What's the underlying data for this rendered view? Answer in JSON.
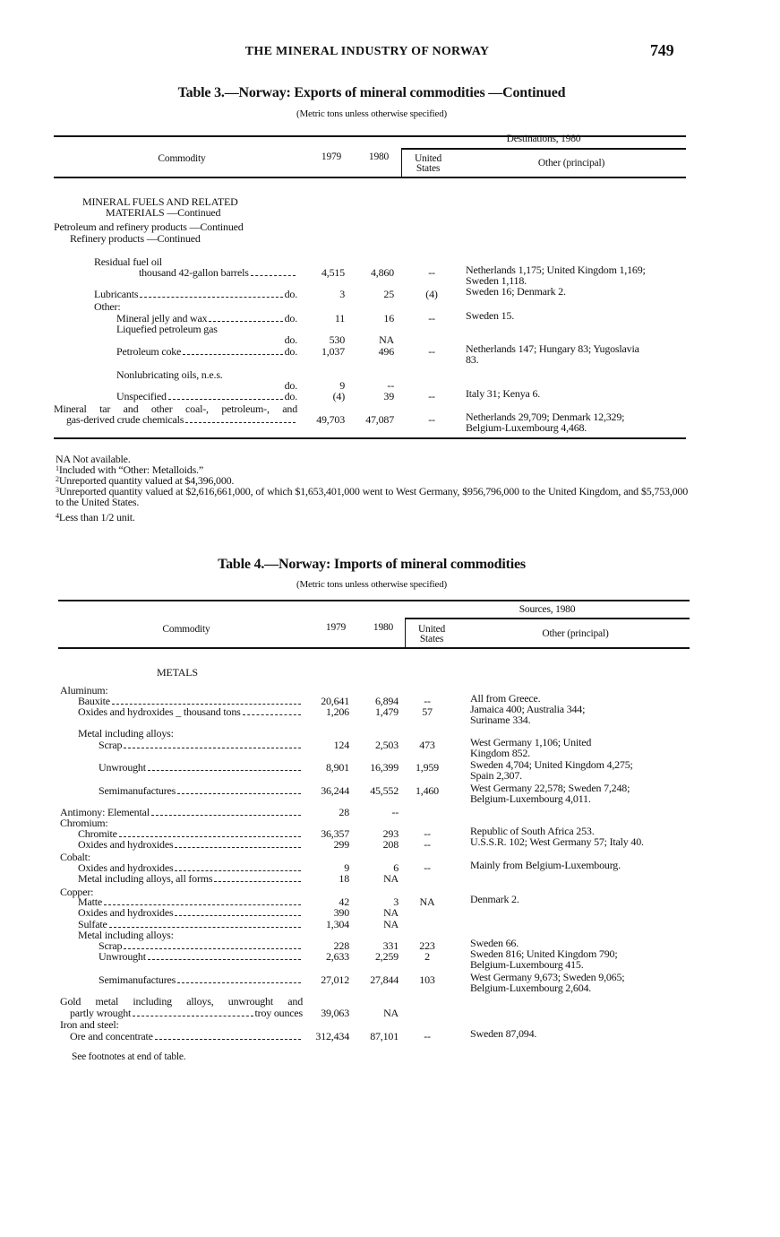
{
  "page": {
    "running_title": "THE MINERAL INDUSTRY OF NORWAY",
    "page_number": "749"
  },
  "table3": {
    "title": "Table 3.—Norway: Exports of mineral commodities —Continued",
    "subtitle": "(Metric tons unless otherwise specified)",
    "headers": {
      "commodity": "Commodity",
      "y1979": "1979",
      "y1980": "1980",
      "group": "Destinations, 1980",
      "us": "United\nStates",
      "other": "Other (principal)"
    },
    "rows": [
      {
        "label": "MINERAL FUELS AND RELATED"
      },
      {
        "label": "MATERIALS —Continued"
      },
      {
        "label": "Petroleum and refinery products —Continued"
      },
      {
        "label": "Refinery products —Continued"
      },
      {
        "label": "Residual fuel oil"
      },
      {
        "label": "thousand  42-gallon  barrels",
        "leader": true,
        "v1979": "4,515",
        "v1980": "4,860",
        "us": "--",
        "other": "Netherlands 1,175; United Kingdom 1,169;\n   Sweden 1,118."
      },
      {
        "label": "Lubricants",
        "leader": true,
        "unit": "do.",
        "v1979": "3",
        "v1980": "25",
        "us": "(4)",
        "other": "Sweden 16; Denmark 2."
      },
      {
        "label": "Other:"
      },
      {
        "label": "Mineral jelly and wax",
        "leader": true,
        "unit": "do.",
        "v1979": "11",
        "v1980": "16",
        "us": "--",
        "other": "Sweden 15."
      },
      {
        "label": "Liquefied petroleum gas"
      },
      {
        "label": "",
        "leader": false,
        "unit": "do.",
        "v1979": "530",
        "v1980": "NA"
      },
      {
        "label": "Petroleum coke",
        "leader": true,
        "unit": "do.",
        "v1979": "1,037",
        "v1980": "496",
        "us": "--",
        "other": "Netherlands 147; Hungary 83; Yugoslavia\n   83."
      },
      {
        "label": "Nonlubricating oils, n.e.s."
      },
      {
        "label": "",
        "leader": false,
        "unit": "do.",
        "v1979": "9",
        "v1980": "--"
      },
      {
        "label": "Unspecified",
        "leader": true,
        "unit": "do.",
        "v1979": "(4)",
        "v1980": "39",
        "us": "--",
        "other": "Italy 31; Kenya 6."
      },
      {
        "label": "Mineral tar and other coal-, petroleum-, and"
      },
      {
        "label": "gas-derived crude chemicals",
        "leader": true,
        "v1979": "49,703",
        "v1980": "47,087",
        "us": "--",
        "other": "Netherlands 29,709; Denmark 12,329;\n   Belgium-Luxembourg 4,468."
      }
    ],
    "footnotes": [
      {
        "mark": "",
        "text": "NA Not available."
      },
      {
        "mark": "1",
        "text": "Included with “Other: Metalloids.”"
      },
      {
        "mark": "2",
        "text": "Unreported quantity valued at $4,396,000."
      },
      {
        "mark": "3",
        "text": "Unreported quantity valued at $2,616,661,000, of which $1,653,401,000 went to West Germany, $956,796,000 to the United Kingdom, and $5,753,000 to the United States."
      },
      {
        "mark": "4",
        "text": "Less than 1/2 unit."
      }
    ]
  },
  "table4": {
    "title": "Table 4.—Norway: Imports of mineral commodities",
    "subtitle": "(Metric tons unless otherwise specified)",
    "headers": {
      "commodity": "Commodity",
      "y1979": "1979",
      "y1980": "1980",
      "group": "Sources, 1980",
      "us": "United\nStates",
      "other": "Other (principal)"
    },
    "rows": [
      {
        "label": "METALS"
      },
      {
        "label": "Aluminum:"
      },
      {
        "label": "Bauxite",
        "leader": true,
        "v1979": "20,641",
        "v1980": "6,894",
        "us": "--",
        "other": "All from Greece."
      },
      {
        "label": "Oxides and hydroxides _ thousand tons",
        "leader": true,
        "v1979": "1,206",
        "v1980": "1,479",
        "us": "57",
        "other": "Jamaica 400; Australia 344;\n   Suriname 334."
      },
      {
        "label": "Metal including alloys:"
      },
      {
        "label": "Scrap",
        "leader": true,
        "v1979": "124",
        "v1980": "2,503",
        "us": "473",
        "other": "West Germany 1,106; United\n   Kingdom 852."
      },
      {
        "label": "Unwrought",
        "leader": true,
        "v1979": "8,901",
        "v1980": "16,399",
        "us": "1,959",
        "other": "Sweden 4,704; United Kingdom 4,275;\n   Spain 2,307."
      },
      {
        "label": "Semimanufactures",
        "leader": true,
        "v1979": "36,244",
        "v1980": "45,552",
        "us": "1,460",
        "other": "West Germany 22,578; Sweden 7,248;\n   Belgium-Luxembourg 4,011."
      },
      {
        "label": "Antimony: Elemental",
        "leader": true,
        "v1979": "28",
        "v1980": "--"
      },
      {
        "label": "Chromium:"
      },
      {
        "label": "Chromite",
        "leader": true,
        "v1979": "36,357",
        "v1980": "293",
        "us": "--",
        "other": "Republic of South Africa 253."
      },
      {
        "label": "Oxides and hydroxides",
        "leader": true,
        "v1979": "299",
        "v1980": "208",
        "us": "--",
        "other": "U.S.S.R. 102; West Germany 57; Italy 40."
      },
      {
        "label": "Cobalt:"
      },
      {
        "label": "Oxides and hydroxides",
        "leader": true,
        "v1979": "9",
        "v1980": "6",
        "us": "--",
        "other": "Mainly from Belgium-Luxembourg."
      },
      {
        "label": "Metal including alloys, all forms",
        "leader": true,
        "v1979": "18",
        "v1980": "NA"
      },
      {
        "label": "Copper:"
      },
      {
        "label": "Matte",
        "leader": true,
        "v1979": "42",
        "v1980": "3",
        "us": "NA",
        "other": "Denmark 2."
      },
      {
        "label": "Oxides and hydroxides",
        "leader": true,
        "v1979": "390",
        "v1980": "NA"
      },
      {
        "label": "Sulfate",
        "leader": true,
        "v1979": "1,304",
        "v1980": "NA"
      },
      {
        "label": "Metal including alloys:"
      },
      {
        "label": "Scrap",
        "leader": true,
        "v1979": "228",
        "v1980": "331",
        "us": "223",
        "other": "Sweden 66."
      },
      {
        "label": "Unwrought",
        "leader": true,
        "v1979": "2,633",
        "v1980": "2,259",
        "us": "2",
        "other": "Sweden 816; United Kingdom 790;\n   Belgium-Luxembourg 415."
      },
      {
        "label": "Semimanufactures",
        "leader": true,
        "v1979": "27,012",
        "v1980": "27,844",
        "us": "103",
        "other": "West Germany 9,673; Sweden 9,065;\n   Belgium-Luxembourg 2,604."
      },
      {
        "label": "Gold metal including alloys, unwrought and"
      },
      {
        "label": "partly wrought",
        "leader": true,
        "unit": "troy ounces",
        "v1979": "39,063",
        "v1980": "NA"
      },
      {
        "label": "Iron and steel:"
      },
      {
        "label": "Ore and concentrate",
        "leader": true,
        "v1979": "312,434",
        "v1980": "87,101",
        "us": "--",
        "other": "Sweden 87,094."
      }
    ],
    "note": "See footnotes at end of table."
  }
}
